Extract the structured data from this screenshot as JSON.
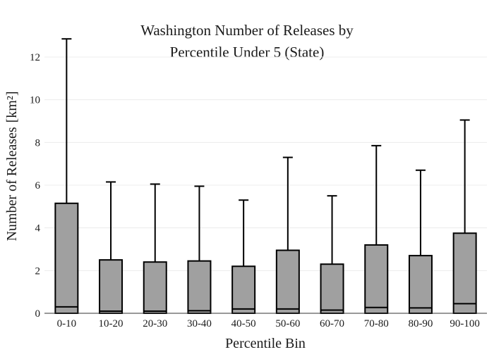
{
  "chart_data": {
    "type": "box",
    "title_lines": [
      "Washington Number of Releases by",
      "Percentile Under 5 (State)"
    ],
    "xlabel": "Percentile Bin",
    "ylabel": "Number of Releases",
    "ylabel_unit": "[km²]",
    "ylim": [
      0,
      13
    ],
    "yticks": [
      0,
      2,
      4,
      6,
      8,
      10,
      12
    ],
    "grid": true,
    "box_color": "#a0a0a0",
    "categories": [
      "0-10",
      "10-20",
      "20-30",
      "30-40",
      "40-50",
      "50-60",
      "60-70",
      "70-80",
      "80-90",
      "90-100"
    ],
    "boxes": [
      {
        "category": "0-10",
        "min": 0,
        "q1": 0,
        "median": 0.3,
        "q3": 5.15,
        "max": 12.85
      },
      {
        "category": "10-20",
        "min": 0,
        "q1": 0,
        "median": 0.1,
        "q3": 2.5,
        "max": 6.15
      },
      {
        "category": "20-30",
        "min": 0,
        "q1": 0,
        "median": 0.1,
        "q3": 2.4,
        "max": 6.05
      },
      {
        "category": "30-40",
        "min": 0,
        "q1": 0,
        "median": 0.12,
        "q3": 2.45,
        "max": 5.95
      },
      {
        "category": "40-50",
        "min": 0,
        "q1": 0,
        "median": 0.2,
        "q3": 2.2,
        "max": 5.3
      },
      {
        "category": "50-60",
        "min": 0,
        "q1": 0,
        "median": 0.2,
        "q3": 2.95,
        "max": 7.3
      },
      {
        "category": "60-70",
        "min": 0,
        "q1": 0,
        "median": 0.15,
        "q3": 2.3,
        "max": 5.5
      },
      {
        "category": "70-80",
        "min": 0,
        "q1": 0,
        "median": 0.27,
        "q3": 3.2,
        "max": 7.85
      },
      {
        "category": "80-90",
        "min": 0,
        "q1": 0,
        "median": 0.25,
        "q3": 2.7,
        "max": 6.7
      },
      {
        "category": "90-100",
        "min": 0,
        "q1": 0,
        "median": 0.45,
        "q3": 3.75,
        "max": 9.05
      }
    ]
  }
}
